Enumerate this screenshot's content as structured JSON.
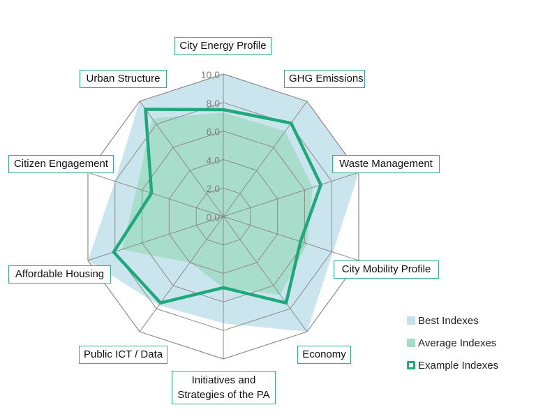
{
  "chart_data": {
    "type": "radar",
    "title": "",
    "categories": [
      "City Energy Profile",
      "GHG Emissions",
      "Waste Management",
      "City Mobility Profile",
      "Economy",
      "Initiatives and Strategies of the PA",
      "Public ICT / Data",
      "Affordable Housing",
      "Citizen Engagement",
      "Urban Structure"
    ],
    "series": [
      {
        "name": "Best Indexes",
        "type": "area",
        "color": "#c4e2ec",
        "values": [
          10.0,
          10.0,
          10.0,
          8.1,
          10.0,
          7.5,
          7.7,
          10.0,
          8.0,
          10.0
        ]
      },
      {
        "name": "Average Indexes",
        "type": "area",
        "color": "#a5dcc6",
        "values": [
          7.3,
          7.4,
          6.6,
          6.2,
          6.8,
          5.0,
          4.0,
          7.5,
          6.4,
          8.5
        ]
      },
      {
        "name": "Example Indexes",
        "type": "line",
        "color": "#1fa97a",
        "values": [
          7.5,
          8.1,
          7.2,
          5.7,
          7.5,
          5.0,
          7.5,
          8.1,
          5.3,
          9.3
        ]
      }
    ],
    "rmin": 0,
    "rmax": 10,
    "tick_labels": [
      "0,0",
      "2,0",
      "4,0",
      "6,0",
      "8,0",
      "10,0"
    ],
    "grid": true,
    "legend_position": "right-bottom"
  },
  "labels": {
    "energy": "City Energy Profile",
    "ghg": "GHG Emissions",
    "waste": "Waste Management",
    "mobility": "City Mobility Profile",
    "economy": "Economy",
    "initiatives_1": "Initiatives and",
    "initiatives_2": "Strategies of the PA",
    "ict": "Public ICT / Data",
    "housing": "Affordable Housing",
    "citizen": "Citizen Engagement",
    "urban": "Urban Structure"
  },
  "legend": {
    "best": "Best Indexes",
    "average": "Average Indexes",
    "example": "Example Indexes"
  }
}
